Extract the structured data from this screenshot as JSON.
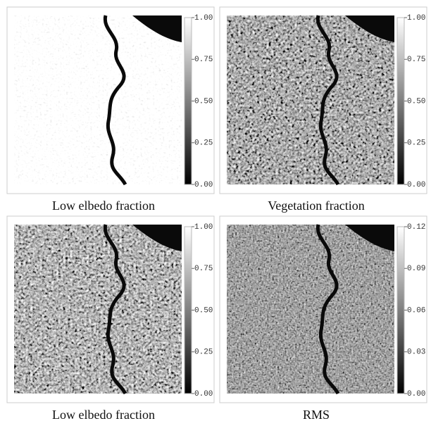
{
  "panels": [
    {
      "caption": "Low elbedo fraction",
      "colorbar": {
        "ticks": [
          {
            "value": 1,
            "label": "1.00"
          },
          {
            "value": 0.75,
            "label": "0.75"
          },
          {
            "value": 0.5,
            "label": "0.50"
          },
          {
            "value": 0.25,
            "label": "0.25"
          },
          {
            "value": 0,
            "label": "0.00"
          }
        ]
      }
    },
    {
      "caption": "Vegetation fraction",
      "colorbar": {
        "ticks": [
          {
            "value": 1,
            "label": "1.00"
          },
          {
            "value": 0.75,
            "label": "0.75"
          },
          {
            "value": 0.5,
            "label": "0.50"
          },
          {
            "value": 0.25,
            "label": "0.25"
          },
          {
            "value": 0,
            "label": "0.00"
          }
        ]
      }
    },
    {
      "caption": "Low elbedo fraction",
      "colorbar": {
        "ticks": [
          {
            "value": 1,
            "label": "1.00"
          },
          {
            "value": 0.75,
            "label": "0.75"
          },
          {
            "value": 0.5,
            "label": "0.50"
          },
          {
            "value": 0.25,
            "label": "0.25"
          },
          {
            "value": 0,
            "label": "0.00"
          }
        ]
      }
    },
    {
      "caption": "RMS",
      "colorbar": {
        "ticks": [
          {
            "value": 0.12,
            "label": "0.12"
          },
          {
            "value": 0.09,
            "label": "0.09"
          },
          {
            "value": 0.06,
            "label": "0.06"
          },
          {
            "value": 0.03,
            "label": "0.03"
          },
          {
            "value": 0,
            "label": "0.00"
          }
        ]
      }
    }
  ]
}
